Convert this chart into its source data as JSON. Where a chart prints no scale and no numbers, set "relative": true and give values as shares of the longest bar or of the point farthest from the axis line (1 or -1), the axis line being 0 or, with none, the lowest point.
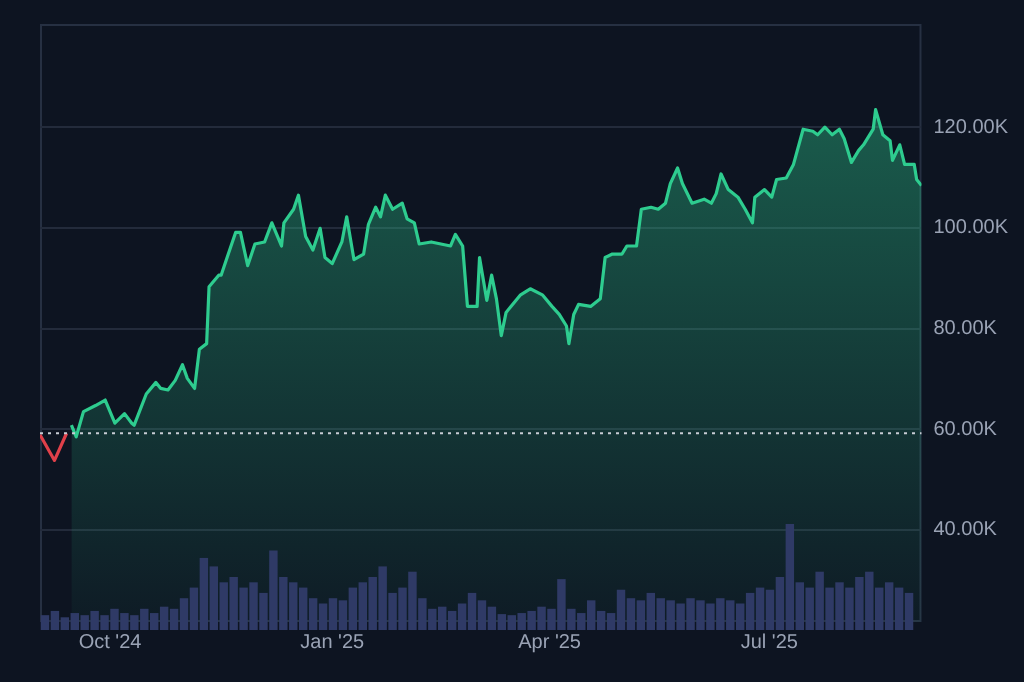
{
  "chart_data": [
    {
      "type": "area",
      "xlim": [
        "2024-09-02",
        "2025-09-02"
      ],
      "ylim": [
        21700,
        140500
      ],
      "grid": "y",
      "xticks": [
        {
          "value": "2024-10-01",
          "label": "Oct '24"
        },
        {
          "value": "2025-01-01",
          "label": "Jan '25"
        },
        {
          "value": "2025-04-01",
          "label": "Apr '25"
        },
        {
          "value": "2025-07-01",
          "label": "Jul '25"
        }
      ],
      "yticks": [
        {
          "value": 40000,
          "label": "40.00K"
        },
        {
          "value": 60000,
          "label": "60.00K"
        },
        {
          "value": 80000,
          "label": "80.00K"
        },
        {
          "value": 100000,
          "label": "100.00K"
        },
        {
          "value": 120000,
          "label": "120.00K"
        }
      ],
      "ref_lines": [
        {
          "axis": "y",
          "value": 59200,
          "color": "#c8ccd4",
          "line_style": "dotted"
        }
      ],
      "series": [
        {
          "type": "line",
          "color": "#e0404a",
          "x": [
            "2024-09-02",
            "2024-09-08",
            "2024-09-13"
          ],
          "values": [
            58900,
            53800,
            59200
          ]
        },
        {
          "color": "#2ecc8f",
          "x": [
            "2024-09-15",
            "2024-09-17",
            "2024-09-20",
            "2024-09-25",
            "2024-09-29",
            "2024-10-01",
            "2024-10-03",
            "2024-10-07",
            "2024-10-10",
            "2024-10-11",
            "2024-10-16",
            "2024-10-20",
            "2024-10-22",
            "2024-10-25",
            "2024-10-28",
            "2024-10-31",
            "2024-11-02",
            "2024-11-05",
            "2024-11-07",
            "2024-11-10",
            "2024-11-11",
            "2024-11-15",
            "2024-11-16",
            "2024-11-22",
            "2024-11-24",
            "2024-11-27",
            "2024-11-30",
            "2024-12-04",
            "2024-12-07",
            "2024-12-11",
            "2024-12-12",
            "2024-12-16",
            "2024-12-18",
            "2024-12-21",
            "2024-12-24",
            "2024-12-27",
            "2024-12-29",
            "2025-01-01",
            "2025-01-05",
            "2025-01-07",
            "2025-01-10",
            "2025-01-14",
            "2025-01-16",
            "2025-01-19",
            "2025-01-21",
            "2025-01-23",
            "2025-01-26",
            "2025-01-30",
            "2025-02-01",
            "2025-02-04",
            "2025-02-06",
            "2025-02-11",
            "2025-02-15",
            "2025-02-19",
            "2025-02-21",
            "2025-02-24",
            "2025-02-26",
            "2025-03-02",
            "2025-03-03",
            "2025-03-06",
            "2025-03-08",
            "2025-03-10",
            "2025-03-12",
            "2025-03-14",
            "2025-03-16",
            "2025-03-20",
            "2025-03-24",
            "2025-03-29",
            "2025-04-02",
            "2025-04-05",
            "2025-04-08",
            "2025-04-09",
            "2025-04-11",
            "2025-04-13",
            "2025-04-18",
            "2025-04-22",
            "2025-04-24",
            "2025-04-27",
            "2025-05-01",
            "2025-05-03",
            "2025-05-07",
            "2025-05-09",
            "2025-05-13",
            "2025-05-16",
            "2025-05-19",
            "2025-05-21",
            "2025-05-24",
            "2025-05-26",
            "2025-05-30",
            "2025-06-04",
            "2025-06-07",
            "2025-06-09",
            "2025-06-11",
            "2025-06-14",
            "2025-06-18",
            "2025-06-21",
            "2025-06-24",
            "2025-06-25",
            "2025-06-29",
            "2025-07-02",
            "2025-07-04",
            "2025-07-08",
            "2025-07-11",
            "2025-07-15",
            "2025-07-19",
            "2025-07-21",
            "2025-07-24",
            "2025-07-27",
            "2025-07-30",
            "2025-08-01",
            "2025-08-04",
            "2025-08-07",
            "2025-08-09",
            "2025-08-13",
            "2025-08-14",
            "2025-08-17",
            "2025-08-20",
            "2025-08-21",
            "2025-08-24",
            "2025-08-26",
            "2025-08-30",
            "2025-08-31",
            "2025-09-02"
          ],
          "values": [
            60800,
            58500,
            63500,
            64700,
            65800,
            63500,
            61200,
            63100,
            61200,
            60800,
            67000,
            69300,
            68100,
            67800,
            69700,
            72800,
            70100,
            68100,
            75900,
            77000,
            88300,
            90600,
            90600,
            99100,
            99100,
            92500,
            96800,
            97200,
            101000,
            96400,
            101000,
            103700,
            106500,
            98300,
            95600,
            99900,
            94100,
            92900,
            97200,
            102200,
            93700,
            94800,
            100700,
            104100,
            102200,
            106500,
            103700,
            104900,
            101800,
            101000,
            96800,
            97200,
            96800,
            96400,
            98700,
            96400,
            84400,
            84400,
            94100,
            85600,
            90600,
            85900,
            78600,
            83200,
            84400,
            86700,
            87900,
            86700,
            84400,
            82800,
            80500,
            77000,
            82800,
            84800,
            84400,
            85900,
            94100,
            94800,
            94800,
            96400,
            96400,
            103700,
            104100,
            103700,
            104900,
            108800,
            111900,
            108800,
            104900,
            105700,
            104900,
            106800,
            110700,
            107600,
            106100,
            103700,
            101000,
            106100,
            107600,
            106100,
            109600,
            109900,
            112600,
            119600,
            119200,
            118500,
            120000,
            118500,
            119600,
            117700,
            113000,
            115400,
            116500,
            119600,
            123500,
            118500,
            117300,
            113400,
            116500,
            112600,
            112600,
            109600,
            108400
          ]
        }
      ]
    },
    {
      "type": "bar",
      "relative": true,
      "color": "#2f3a66",
      "categories": [
        null,
        null,
        null,
        null,
        null,
        null,
        null,
        null,
        null,
        null,
        null,
        null,
        null,
        null,
        null,
        null,
        null,
        null,
        null,
        null,
        null,
        null,
        null,
        null,
        null,
        null,
        null,
        null,
        null,
        null,
        null,
        null,
        null,
        null,
        null,
        null,
        null,
        null,
        null,
        null,
        null,
        null,
        null,
        null,
        null,
        null,
        null,
        null,
        null,
        null,
        null,
        null,
        null,
        null,
        null,
        null,
        null,
        null,
        null,
        null,
        null,
        null,
        null,
        null,
        null,
        null,
        null,
        null,
        null,
        null,
        null,
        null,
        null,
        null,
        null,
        null,
        null,
        null,
        null,
        null,
        null,
        null,
        null,
        null,
        null,
        null,
        null,
        null
      ],
      "values": [
        0.14,
        0.18,
        0.12,
        0.16,
        0.14,
        0.18,
        0.14,
        0.2,
        0.16,
        0.14,
        0.2,
        0.16,
        0.22,
        0.2,
        0.3,
        0.4,
        0.68,
        0.6,
        0.45,
        0.5,
        0.4,
        0.45,
        0.35,
        0.75,
        0.5,
        0.45,
        0.4,
        0.3,
        0.25,
        0.3,
        0.28,
        0.4,
        0.45,
        0.5,
        0.6,
        0.35,
        0.4,
        0.55,
        0.3,
        0.2,
        0.22,
        0.18,
        0.25,
        0.35,
        0.28,
        0.22,
        0.15,
        0.14,
        0.16,
        0.18,
        0.22,
        0.2,
        0.48,
        0.2,
        0.16,
        0.28,
        0.18,
        0.16,
        0.38,
        0.3,
        0.28,
        0.35,
        0.3,
        0.28,
        0.25,
        0.3,
        0.28,
        0.25,
        0.3,
        0.28,
        0.25,
        0.35,
        0.4,
        0.38,
        0.5,
        1,
        0.45,
        0.4,
        0.55,
        0.4,
        0.45,
        0.4,
        0.5,
        0.55,
        0.4,
        0.45,
        0.4,
        0.35
      ]
    }
  ]
}
